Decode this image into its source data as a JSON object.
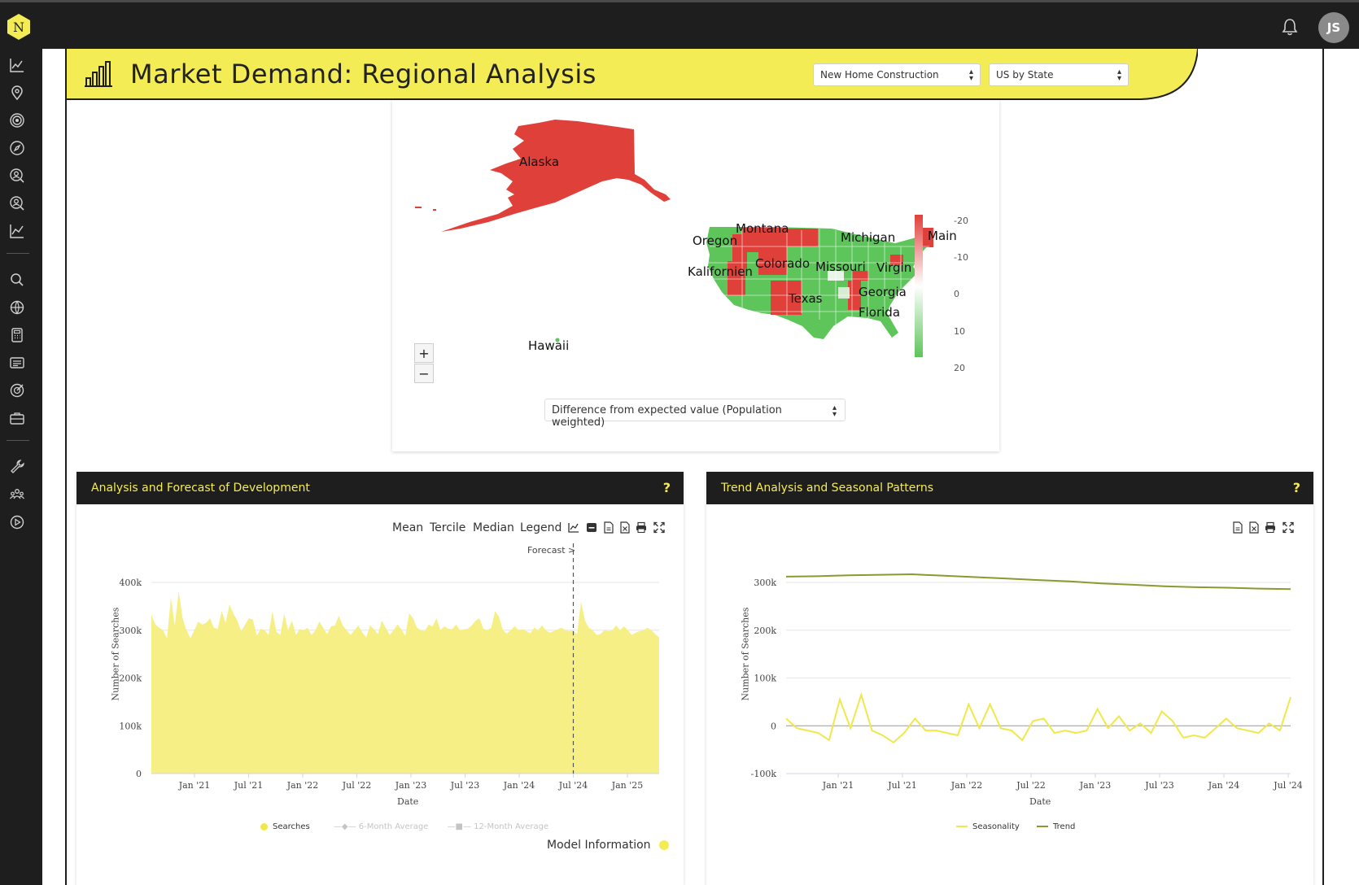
{
  "app": {
    "logo_letter": "N",
    "avatar_initials": "JS"
  },
  "icons": {
    "sidebar": [
      "analytics-icon",
      "location-pin-icon",
      "target-icon",
      "compass-icon",
      "user-search-icon",
      "user-profile-icon",
      "line-chart-icon",
      "search-icon",
      "globe-icon",
      "calculator-icon",
      "news-icon",
      "goal-icon",
      "briefcase-icon",
      "wrench-icon",
      "team-icon",
      "play-icon"
    ]
  },
  "header": {
    "title": "Market Demand: Regional Analysis",
    "industry_select": "New Home Construction",
    "region_select": "US by State",
    "accent_color": "#f4ec55"
  },
  "map": {
    "labels": {
      "alaska": "Alaska",
      "montana": "Montana",
      "oregon": "Oregon",
      "michigan": "Michigan",
      "maine": "Main",
      "colorado": "Colorado",
      "kalifornien": "Kalifornien",
      "missouri": "Missouri",
      "virginia": "Virgin",
      "georgia": "Georgia",
      "texas": "Texas",
      "florida": "Florida",
      "hawaii": "Hawaii"
    },
    "zoom_in": "+",
    "zoom_out": "−",
    "color_scale": {
      "ticks": [
        "-20",
        "-10",
        "0",
        "10",
        "20"
      ],
      "high_color": "#e0403a",
      "low_color": "#5dc55a"
    },
    "metric_select": "Difference from expected value (Population weighted)"
  },
  "panel_left": {
    "title": "Analysis and Forecast of Development",
    "help": "?",
    "toolbar": [
      "Mean",
      "Tercile",
      "Median",
      "Legend"
    ],
    "forecast_label": "Forecast >",
    "ylabel": "Number of Searches",
    "xlabel": "Date",
    "legend": [
      "Searches",
      "6-Month Average",
      "12-Month Average"
    ],
    "model_info": "Model Information"
  },
  "panel_right": {
    "title": "Trend Analysis and Seasonal Patterns",
    "help": "?",
    "ylabel": "Number of Searches",
    "xlabel": "Date",
    "legend": [
      "Seasonality",
      "Trend"
    ]
  },
  "chart_data": [
    {
      "type": "area",
      "title": "Analysis and Forecast of Development",
      "xlabel": "Date",
      "ylabel": "Number of Searches",
      "ylim": [
        0,
        400000
      ],
      "yticks": [
        "0",
        "100k",
        "200k",
        "300k",
        "400k"
      ],
      "xticks": [
        "Jan '21",
        "Jul '21",
        "Jan '22",
        "Jul '22",
        "Jan '23",
        "Jul '23",
        "Jan '24",
        "Jul '24",
        "Jan '25"
      ],
      "forecast_start": "Jul '24",
      "series": [
        {
          "name": "Searches",
          "color": "#f5ef86",
          "values": [
            333000,
            312000,
            305000,
            300000,
            283000,
            368000,
            310000,
            382000,
            325000,
            300000,
            283000,
            300000,
            318000,
            312000,
            315000,
            325000,
            305000,
            303000,
            340000,
            315000,
            353000,
            335000,
            320000,
            298000,
            312000,
            325000,
            322000,
            288000,
            303000,
            300000,
            290000,
            340000,
            297000,
            290000,
            335000,
            300000,
            320000,
            290000,
            302000,
            300000,
            305000,
            290000,
            300000,
            318000,
            305000,
            292000,
            308000,
            310000,
            330000,
            310000,
            300000,
            290000,
            300000,
            310000,
            295000,
            285000,
            310000,
            302000,
            292000,
            320000,
            305000,
            290000,
            300000,
            312000,
            302000,
            288000,
            335000,
            325000,
            305000,
            300000,
            298000,
            312000,
            308000,
            325000,
            300000,
            308000,
            303000,
            302000,
            312000,
            300000,
            302000,
            303000,
            310000,
            320000,
            325000,
            303000,
            300000,
            305000,
            340000,
            328000,
            300000,
            293000,
            300000,
            308000,
            300000,
            302000,
            298000,
            293000,
            305000,
            300000,
            310000,
            300000,
            295000,
            298000,
            302000,
            305000,
            300000,
            298000,
            300000,
            292000,
            360000,
            320000,
            305000,
            300000,
            290000,
            292000,
            300000,
            298000,
            300000,
            310000,
            300000,
            308000,
            300000,
            290000,
            295000,
            298000,
            300000,
            305000,
            300000,
            292000,
            285000
          ]
        }
      ]
    },
    {
      "type": "line",
      "title": "Trend Analysis and Seasonal Patterns",
      "xlabel": "Date",
      "ylabel": "Number of Searches",
      "ylim": [
        -100000,
        300000
      ],
      "yticks": [
        "-100k",
        "0",
        "100k",
        "200k",
        "300k"
      ],
      "xticks": [
        "Jan '21",
        "Jul '21",
        "Jan '22",
        "Jul '22",
        "Jan '23",
        "Jul '23",
        "Jan '24",
        "Jul '24"
      ],
      "series": [
        {
          "name": "Trend",
          "color": "#8a9a2f",
          "values": [
            312000,
            313000,
            315000,
            316000,
            317000,
            314000,
            311000,
            308000,
            305000,
            302000,
            298000,
            295000,
            292000,
            290000,
            289000,
            287000,
            286000
          ]
        },
        {
          "name": "Seasonality",
          "color": "#f0e84a",
          "values": [
            15000,
            -5000,
            -10000,
            -15000,
            -30000,
            55000,
            -5000,
            65000,
            -10000,
            -20000,
            -35000,
            -15000,
            15000,
            -10000,
            -10000,
            -15000,
            -20000,
            45000,
            -5000,
            45000,
            -5000,
            -10000,
            -30000,
            10000,
            15000,
            -15000,
            -10000,
            -15000,
            -10000,
            35000,
            -5000,
            20000,
            -10000,
            5000,
            -15000,
            30000,
            10000,
            -25000,
            -20000,
            -25000,
            -5000,
            15000,
            -5000,
            -10000,
            -15000,
            5000,
            -10000,
            60000
          ]
        }
      ]
    }
  ]
}
